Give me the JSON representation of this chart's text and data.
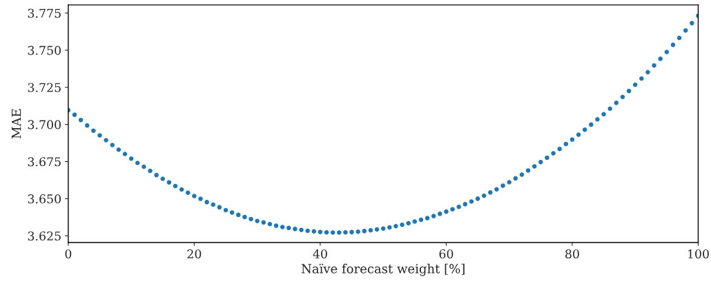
{
  "chart_data": {
    "type": "scatter",
    "xlabel": "Naïve forecast weight [%]",
    "ylabel": "MAE",
    "x": [
      0,
      1,
      2,
      3,
      4,
      5,
      6,
      7,
      8,
      9,
      10,
      11,
      12,
      13,
      14,
      15,
      16,
      17,
      18,
      19,
      20,
      21,
      22,
      23,
      24,
      25,
      26,
      27,
      28,
      29,
      30,
      31,
      32,
      33,
      34,
      35,
      36,
      37,
      38,
      39,
      40,
      41,
      42,
      43,
      44,
      45,
      46,
      47,
      48,
      49,
      50,
      51,
      52,
      53,
      54,
      55,
      56,
      57,
      58,
      59,
      60,
      61,
      62,
      63,
      64,
      65,
      66,
      67,
      68,
      69,
      70,
      71,
      72,
      73,
      74,
      75,
      76,
      77,
      78,
      79,
      80,
      81,
      82,
      83,
      84,
      85,
      86,
      87,
      88,
      89,
      90,
      91,
      92,
      93,
      94,
      95,
      96,
      97,
      98,
      99,
      100
    ],
    "series": [
      {
        "color": "#1f77b4",
        "values": [
          3.7096,
          3.7065,
          3.703,
          3.6993,
          3.6958,
          3.6926,
          3.6894,
          3.6861,
          3.683,
          3.6801,
          3.677,
          3.6741,
          3.6715,
          3.6687,
          3.6659,
          3.6634,
          3.661,
          3.6585,
          3.6562,
          3.654,
          3.6518,
          3.6499,
          3.6477,
          3.646,
          3.6442,
          3.6423,
          3.6407,
          3.6391,
          3.6377,
          3.6363,
          3.635,
          3.634,
          3.6329,
          3.6318,
          3.6309,
          3.6303,
          3.6296,
          3.629,
          3.6284,
          3.628,
          3.6276,
          3.6273,
          3.6272,
          3.6272,
          3.6273,
          3.6275,
          3.6278,
          3.6282,
          3.6287,
          3.6293,
          3.6299,
          3.6307,
          3.6315,
          3.6324,
          3.6335,
          3.6346,
          3.6358,
          3.6369,
          3.6383,
          3.6398,
          3.6413,
          3.6429,
          3.6445,
          3.6463,
          3.6481,
          3.65,
          3.652,
          3.6542,
          3.6563,
          3.6588,
          3.6611,
          3.6637,
          3.6662,
          3.669,
          3.6718,
          3.6747,
          3.6776,
          3.6806,
          3.6835,
          3.6868,
          3.6898,
          3.6931,
          3.6965,
          3.6999,
          3.7034,
          3.7069,
          3.7106,
          3.7145,
          3.7185,
          3.7225,
          3.7267,
          3.7309,
          3.7352,
          3.7397,
          3.7442,
          3.7488,
          3.7536,
          3.7583,
          3.7633,
          3.7682,
          3.7732
        ]
      }
    ],
    "xlim": [
      0,
      100
    ],
    "xticks": [
      0,
      20,
      40,
      60,
      80,
      100
    ],
    "ylim": [
      3.6205,
      3.7805
    ],
    "yticks": [
      {
        "value": 3.625,
        "label": "3.625"
      },
      {
        "value": 3.65,
        "label": "3.650"
      },
      {
        "value": 3.675,
        "label": "3.675"
      },
      {
        "value": 3.7,
        "label": "3.700"
      },
      {
        "value": 3.725,
        "label": "3.725"
      },
      {
        "value": 3.75,
        "label": "3.750"
      },
      {
        "value": 3.775,
        "label": "3.775"
      }
    ],
    "marker": "circle",
    "grid": false,
    "legend": false
  }
}
